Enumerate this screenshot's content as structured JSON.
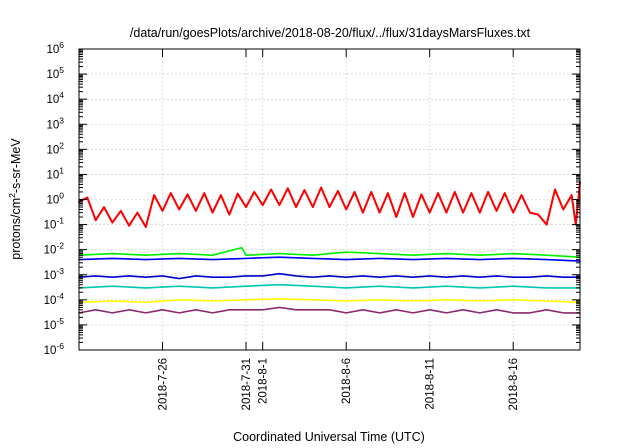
{
  "chart_data": {
    "type": "line",
    "title": "/data/run/goesPlots/archive/2018-08-20/flux/../flux/31daysMarsFluxes.txt",
    "xlabel": "Coordinated Universal Time (UTC)",
    "ylabel": "protons/cm²-s-sr-MeV",
    "ylabel_parts": {
      "pre": "protons/cm",
      "sup": "2",
      "post": "-s-sr-MeV"
    },
    "y_scale": "log",
    "ylim": [
      1e-06,
      1000000.0
    ],
    "y_ticks": [
      {
        "base": "10",
        "exp": "-6",
        "value": 1e-06
      },
      {
        "base": "10",
        "exp": "-5",
        "value": 1e-05
      },
      {
        "base": "10",
        "exp": "-4",
        "value": 0.0001
      },
      {
        "base": "10",
        "exp": "-3",
        "value": 0.001
      },
      {
        "base": "10",
        "exp": "-2",
        "value": 0.01
      },
      {
        "base": "10",
        "exp": "-1",
        "value": 0.1
      },
      {
        "base": "10",
        "exp": "0",
        "value": 1
      },
      {
        "base": "10",
        "exp": "1",
        "value": 10
      },
      {
        "base": "10",
        "exp": "2",
        "value": 100
      },
      {
        "base": "10",
        "exp": "3",
        "value": 1000
      },
      {
        "base": "10",
        "exp": "4",
        "value": 10000
      },
      {
        "base": "10",
        "exp": "5",
        "value": 100000
      },
      {
        "base": "10",
        "exp": "6",
        "value": 1000000
      }
    ],
    "xlim": [
      "2018-07-21",
      "2018-08-20"
    ],
    "x_ticks": [
      {
        "label": "2018-7-26",
        "date": "2018-07-26"
      },
      {
        "label": "2018-7-31",
        "date": "2018-07-31"
      },
      {
        "label": "2018-8-1",
        "date": "2018-08-01"
      },
      {
        "label": "2018-8-6",
        "date": "2018-08-06"
      },
      {
        "label": "2018-8-11",
        "date": "2018-08-11"
      },
      {
        "label": "2018-8-16",
        "date": "2018-08-16"
      }
    ],
    "grid": true,
    "legend": "none",
    "series": [
      {
        "color": "#ff0000",
        "values": [
          [
            "2018-07-21T00:00",
            0.8
          ],
          [
            "2018-07-21T12:00",
            1.2
          ],
          [
            "2018-07-22T00:00",
            0.15
          ],
          [
            "2018-07-22T12:00",
            0.5
          ],
          [
            "2018-07-23T00:00",
            0.12
          ],
          [
            "2018-07-23T12:00",
            0.35
          ],
          [
            "2018-07-24T00:00",
            0.09
          ],
          [
            "2018-07-24T12:00",
            0.3
          ],
          [
            "2018-07-25T00:00",
            0.08
          ],
          [
            "2018-07-25T12:00",
            1.5
          ],
          [
            "2018-07-26T00:00",
            0.35
          ],
          [
            "2018-07-26T12:00",
            1.8
          ],
          [
            "2018-07-27T00:00",
            0.4
          ],
          [
            "2018-07-27T12:00",
            1.6
          ],
          [
            "2018-07-28T00:00",
            0.35
          ],
          [
            "2018-07-28T12:00",
            1.8
          ],
          [
            "2018-07-29T00:00",
            0.3
          ],
          [
            "2018-07-29T12:00",
            1.5
          ],
          [
            "2018-07-30T00:00",
            0.25
          ],
          [
            "2018-07-30T12:00",
            1.7
          ],
          [
            "2018-07-31T00:00",
            0.5
          ],
          [
            "2018-07-31T12:00",
            2.0
          ],
          [
            "2018-08-01T00:00",
            0.6
          ],
          [
            "2018-08-01T12:00",
            2.5
          ],
          [
            "2018-08-02T00:00",
            0.6
          ],
          [
            "2018-08-02T12:00",
            2.8
          ],
          [
            "2018-08-03T00:00",
            0.5
          ],
          [
            "2018-08-03T12:00",
            2.4
          ],
          [
            "2018-08-04T00:00",
            0.5
          ],
          [
            "2018-08-04T12:00",
            3.0
          ],
          [
            "2018-08-05T00:00",
            0.5
          ],
          [
            "2018-08-05T12:00",
            2.2
          ],
          [
            "2018-08-06T00:00",
            0.4
          ],
          [
            "2018-08-06T12:00",
            2.0
          ],
          [
            "2018-08-07T00:00",
            0.3
          ],
          [
            "2018-08-07T12:00",
            2.0
          ],
          [
            "2018-08-08T00:00",
            0.3
          ],
          [
            "2018-08-08T12:00",
            1.8
          ],
          [
            "2018-08-09T00:00",
            0.2
          ],
          [
            "2018-08-09T12:00",
            1.8
          ],
          [
            "2018-08-10T00:00",
            0.2
          ],
          [
            "2018-08-10T12:00",
            1.6
          ],
          [
            "2018-08-11T00:00",
            0.3
          ],
          [
            "2018-08-11T12:00",
            1.8
          ],
          [
            "2018-08-12T00:00",
            0.3
          ],
          [
            "2018-08-12T12:00",
            2.0
          ],
          [
            "2018-08-13T00:00",
            0.3
          ],
          [
            "2018-08-13T12:00",
            1.8
          ],
          [
            "2018-08-14T00:00",
            0.3
          ],
          [
            "2018-08-14T12:00",
            2.0
          ],
          [
            "2018-08-15T00:00",
            0.35
          ],
          [
            "2018-08-15T12:00",
            1.8
          ],
          [
            "2018-08-16T00:00",
            0.3
          ],
          [
            "2018-08-16T12:00",
            1.5
          ],
          [
            "2018-08-17T00:00",
            0.3
          ],
          [
            "2018-08-17T12:00",
            0.25
          ],
          [
            "2018-08-18T00:00",
            0.1
          ],
          [
            "2018-08-18T12:00",
            2.5
          ],
          [
            "2018-08-19T00:00",
            0.4
          ],
          [
            "2018-08-19T12:00",
            1.5
          ],
          [
            "2018-08-19T18:00",
            0.1
          ],
          [
            "2018-08-20T00:00",
            5.0
          ]
        ]
      },
      {
        "color": "#00ee00",
        "values": [
          [
            "2018-07-21T00:00",
            0.006
          ],
          [
            "2018-07-23T00:00",
            0.007
          ],
          [
            "2018-07-25T00:00",
            0.006
          ],
          [
            "2018-07-27T00:00",
            0.007
          ],
          [
            "2018-07-29T00:00",
            0.006
          ],
          [
            "2018-07-30T18:00",
            0.012
          ],
          [
            "2018-07-31T00:00",
            0.006
          ],
          [
            "2018-08-02T00:00",
            0.007
          ],
          [
            "2018-08-04T00:00",
            0.006
          ],
          [
            "2018-08-06T00:00",
            0.008
          ],
          [
            "2018-08-08T00:00",
            0.007
          ],
          [
            "2018-08-10T00:00",
            0.006
          ],
          [
            "2018-08-12T00:00",
            0.007
          ],
          [
            "2018-08-14T00:00",
            0.006
          ],
          [
            "2018-08-16T00:00",
            0.007
          ],
          [
            "2018-08-18T00:00",
            0.006
          ],
          [
            "2018-08-20T00:00",
            0.005
          ]
        ]
      },
      {
        "color": "#0000ff",
        "values": [
          [
            "2018-07-21T00:00",
            0.004
          ],
          [
            "2018-07-23T00:00",
            0.0045
          ],
          [
            "2018-07-25T00:00",
            0.004
          ],
          [
            "2018-07-27T00:00",
            0.0045
          ],
          [
            "2018-07-29T00:00",
            0.004
          ],
          [
            "2018-07-31T00:00",
            0.0045
          ],
          [
            "2018-08-02T00:00",
            0.005
          ],
          [
            "2018-08-04T00:00",
            0.0045
          ],
          [
            "2018-08-06T00:00",
            0.004
          ],
          [
            "2018-08-08T00:00",
            0.0045
          ],
          [
            "2018-08-10T00:00",
            0.004
          ],
          [
            "2018-08-12T00:00",
            0.0045
          ],
          [
            "2018-08-14T00:00",
            0.004
          ],
          [
            "2018-08-16T00:00",
            0.0045
          ],
          [
            "2018-08-18T00:00",
            0.004
          ],
          [
            "2018-08-20T00:00",
            0.0035
          ]
        ]
      },
      {
        "color": "#0000cc",
        "values": [
          [
            "2018-07-21T00:00",
            0.0008
          ],
          [
            "2018-07-22T00:00",
            0.0009
          ],
          [
            "2018-07-23T00:00",
            0.0008
          ],
          [
            "2018-07-24T00:00",
            0.0009
          ],
          [
            "2018-07-25T00:00",
            0.0008
          ],
          [
            "2018-07-26T00:00",
            0.0009
          ],
          [
            "2018-07-27T00:00",
            0.0007
          ],
          [
            "2018-07-28T00:00",
            0.0009
          ],
          [
            "2018-07-29T00:00",
            0.0008
          ],
          [
            "2018-07-30T00:00",
            0.0008
          ],
          [
            "2018-07-31T00:00",
            0.0009
          ],
          [
            "2018-08-01T00:00",
            0.0009
          ],
          [
            "2018-08-02T00:00",
            0.0011
          ],
          [
            "2018-08-03T00:00",
            0.0009
          ],
          [
            "2018-08-04T00:00",
            0.0008
          ],
          [
            "2018-08-05T00:00",
            0.0009
          ],
          [
            "2018-08-06T00:00",
            0.0008
          ],
          [
            "2018-08-07T00:00",
            0.0009
          ],
          [
            "2018-08-08T00:00",
            0.0008
          ],
          [
            "2018-08-09T00:00",
            0.0009
          ],
          [
            "2018-08-10T00:00",
            0.0008
          ],
          [
            "2018-08-11T00:00",
            0.0009
          ],
          [
            "2018-08-12T00:00",
            0.0008
          ],
          [
            "2018-08-13T00:00",
            0.0009
          ],
          [
            "2018-08-14T00:00",
            0.0008
          ],
          [
            "2018-08-15T00:00",
            0.0009
          ],
          [
            "2018-08-16T00:00",
            0.0008
          ],
          [
            "2018-08-17T00:00",
            0.0008
          ],
          [
            "2018-08-18T00:00",
            0.0009
          ],
          [
            "2018-08-19T00:00",
            0.0008
          ],
          [
            "2018-08-20T00:00",
            0.0008
          ]
        ]
      },
      {
        "color": "#00c8b0",
        "values": [
          [
            "2018-07-21T00:00",
            0.0003
          ],
          [
            "2018-07-23T00:00",
            0.00035
          ],
          [
            "2018-07-25T00:00",
            0.0003
          ],
          [
            "2018-07-27T00:00",
            0.00035
          ],
          [
            "2018-07-29T00:00",
            0.0003
          ],
          [
            "2018-07-31T00:00",
            0.00035
          ],
          [
            "2018-08-02T00:00",
            0.0004
          ],
          [
            "2018-08-04T00:00",
            0.00035
          ],
          [
            "2018-08-06T00:00",
            0.0003
          ],
          [
            "2018-08-08T00:00",
            0.00035
          ],
          [
            "2018-08-10T00:00",
            0.0003
          ],
          [
            "2018-08-12T00:00",
            0.00035
          ],
          [
            "2018-08-14T00:00",
            0.0003
          ],
          [
            "2018-08-16T00:00",
            0.00035
          ],
          [
            "2018-08-18T00:00",
            0.0003
          ],
          [
            "2018-08-20T00:00",
            0.0003
          ]
        ]
      },
      {
        "color": "#ffff00",
        "values": [
          [
            "2018-07-21T00:00",
            8e-05
          ],
          [
            "2018-07-23T00:00",
            9e-05
          ],
          [
            "2018-07-25T00:00",
            8e-05
          ],
          [
            "2018-07-27T00:00",
            0.0001
          ],
          [
            "2018-07-29T00:00",
            9e-05
          ],
          [
            "2018-07-31T00:00",
            0.0001
          ],
          [
            "2018-08-02T00:00",
            0.00011
          ],
          [
            "2018-08-04T00:00",
            0.0001
          ],
          [
            "2018-08-06T00:00",
            9e-05
          ],
          [
            "2018-08-08T00:00",
            0.0001
          ],
          [
            "2018-08-10T00:00",
            9e-05
          ],
          [
            "2018-08-12T00:00",
            0.0001
          ],
          [
            "2018-08-14T00:00",
            9e-05
          ],
          [
            "2018-08-16T00:00",
            0.0001
          ],
          [
            "2018-08-18T00:00",
            9e-05
          ],
          [
            "2018-08-20T00:00",
            8e-05
          ]
        ]
      },
      {
        "color": "#8b2a6e",
        "values": [
          [
            "2018-07-21T00:00",
            3e-05
          ],
          [
            "2018-07-22T00:00",
            4e-05
          ],
          [
            "2018-07-23T00:00",
            3e-05
          ],
          [
            "2018-07-24T00:00",
            4e-05
          ],
          [
            "2018-07-25T00:00",
            3e-05
          ],
          [
            "2018-07-26T00:00",
            4e-05
          ],
          [
            "2018-07-27T00:00",
            3e-05
          ],
          [
            "2018-07-28T00:00",
            4e-05
          ],
          [
            "2018-07-29T00:00",
            3e-05
          ],
          [
            "2018-07-30T00:00",
            4e-05
          ],
          [
            "2018-07-31T00:00",
            4e-05
          ],
          [
            "2018-08-01T00:00",
            4e-05
          ],
          [
            "2018-08-02T00:00",
            5e-05
          ],
          [
            "2018-08-03T00:00",
            4e-05
          ],
          [
            "2018-08-04T00:00",
            4e-05
          ],
          [
            "2018-08-05T00:00",
            4e-05
          ],
          [
            "2018-08-06T00:00",
            3e-05
          ],
          [
            "2018-08-07T00:00",
            4e-05
          ],
          [
            "2018-08-08T00:00",
            3e-05
          ],
          [
            "2018-08-09T00:00",
            4e-05
          ],
          [
            "2018-08-10T00:00",
            3e-05
          ],
          [
            "2018-08-11T00:00",
            4e-05
          ],
          [
            "2018-08-12T00:00",
            3e-05
          ],
          [
            "2018-08-13T00:00",
            4e-05
          ],
          [
            "2018-08-14T00:00",
            3e-05
          ],
          [
            "2018-08-15T00:00",
            4e-05
          ],
          [
            "2018-08-16T00:00",
            3e-05
          ],
          [
            "2018-08-17T00:00",
            3e-05
          ],
          [
            "2018-08-18T00:00",
            4e-05
          ],
          [
            "2018-08-19T00:00",
            3e-05
          ],
          [
            "2018-08-20T00:00",
            3e-05
          ]
        ]
      }
    ]
  }
}
